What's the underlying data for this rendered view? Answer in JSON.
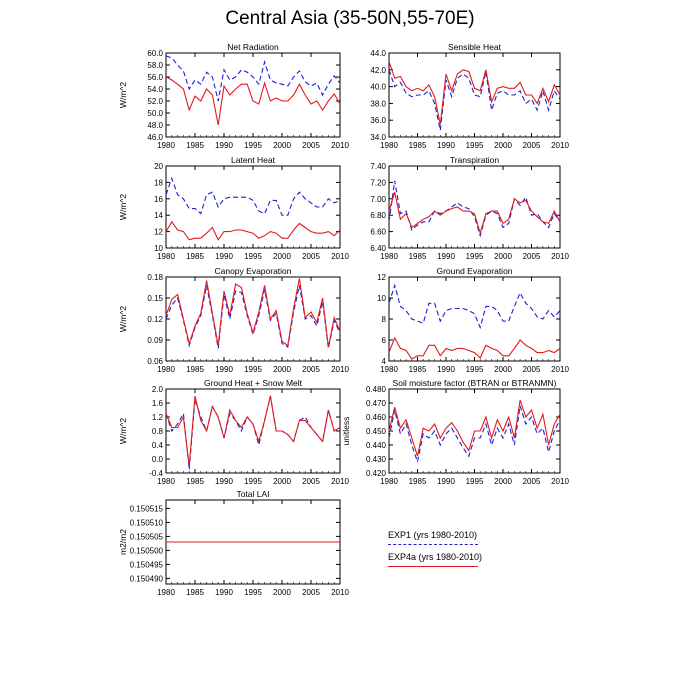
{
  "title": "Central Asia (35-50N,55-70E)",
  "legend": [
    {
      "label": "EXP1 (yrs 1980-2010)",
      "color": "#1f1fd6",
      "dash": "dashed"
    },
    {
      "label": "EXP4a (yrs 1980-2010)",
      "color": "#e31a1c",
      "dash": "solid"
    }
  ],
  "chart_data": [
    {
      "type": "line",
      "title": "Net Radiation",
      "ylabel": "W/m^2",
      "xlim": [
        1980,
        2010
      ],
      "ylim": [
        46,
        60
      ],
      "yticks": [
        "46.0",
        "48.0",
        "50.0",
        "52.0",
        "54.0",
        "56.0",
        "58.0",
        "60.0"
      ],
      "xticks": [
        "1980",
        "1985",
        "1990",
        "1995",
        "2000",
        "2005",
        "2010"
      ],
      "x": [
        1980,
        1981,
        1982,
        1983,
        1984,
        1985,
        1986,
        1987,
        1988,
        1989,
        1990,
        1991,
        1992,
        1993,
        1994,
        1995,
        1996,
        1997,
        1998,
        1999,
        2000,
        2001,
        2002,
        2003,
        2004,
        2005,
        2006,
        2007,
        2008,
        2009,
        2010
      ],
      "series": [
        {
          "name": "EXP1 (yrs 1980-2010)",
          "values": [
            59.5,
            59.2,
            58.0,
            57.0,
            54.0,
            55.5,
            54.8,
            56.8,
            56.0,
            52.0,
            57.2,
            55.5,
            56.0,
            57.2,
            56.8,
            56.0,
            54.8,
            58.5,
            55.5,
            55.0,
            54.8,
            54.5,
            56.0,
            57.0,
            55.2,
            54.5,
            55.0,
            53.0,
            54.8,
            56.2,
            55.0
          ]
        },
        {
          "name": "EXP4a (yrs 1980-2010)",
          "values": [
            56.0,
            55.5,
            54.8,
            54.0,
            50.5,
            52.8,
            52.0,
            54.0,
            53.0,
            48.0,
            54.5,
            53.0,
            54.0,
            54.8,
            54.8,
            52.0,
            51.5,
            55.0,
            52.0,
            52.5,
            52.0,
            52.0,
            53.0,
            54.8,
            53.0,
            51.5,
            52.0,
            50.5,
            52.0,
            53.2,
            51.5
          ]
        }
      ]
    },
    {
      "type": "line",
      "title": "Sensible Heat",
      "ylabel": "",
      "xlim": [
        1980,
        2010
      ],
      "ylim": [
        34,
        44
      ],
      "yticks": [
        "34.0",
        "36.0",
        "38.0",
        "40.0",
        "42.0",
        "44.0"
      ],
      "xticks": [
        "1980",
        "1985",
        "1990",
        "1995",
        "2000",
        "2005",
        "2010"
      ],
      "x": [
        1980,
        1981,
        1982,
        1983,
        1984,
        1985,
        1986,
        1987,
        1988,
        1989,
        1990,
        1991,
        1992,
        1993,
        1994,
        1995,
        1996,
        1997,
        1998,
        1999,
        2000,
        2001,
        2002,
        2003,
        2004,
        2005,
        2006,
        2007,
        2008,
        2009,
        2010
      ],
      "series": [
        {
          "name": "EXP1 (yrs 1980-2010)",
          "values": [
            42.0,
            40.0,
            40.5,
            39.2,
            38.8,
            39.0,
            39.0,
            39.5,
            38.0,
            34.8,
            40.8,
            38.8,
            41.0,
            41.5,
            41.0,
            39.0,
            38.8,
            41.8,
            37.2,
            39.2,
            39.5,
            39.0,
            39.0,
            39.5,
            38.0,
            38.5,
            37.2,
            39.5,
            37.2,
            39.5,
            38.5
          ]
        },
        {
          "name": "EXP4a (yrs 1980-2010)",
          "values": [
            43.0,
            41.0,
            41.2,
            40.0,
            39.5,
            39.8,
            39.5,
            40.2,
            38.8,
            35.5,
            41.5,
            39.5,
            41.5,
            42.0,
            41.8,
            39.8,
            39.5,
            42.0,
            38.2,
            39.8,
            40.0,
            39.8,
            39.8,
            40.5,
            39.0,
            39.0,
            38.0,
            39.8,
            38.2,
            40.2,
            39.0
          ]
        }
      ]
    },
    {
      "type": "line",
      "title": "Latent Heat",
      "ylabel": "W/m^2",
      "xlim": [
        1980,
        2010
      ],
      "ylim": [
        10,
        20
      ],
      "yticks": [
        "10",
        "12",
        "14",
        "16",
        "18",
        "20"
      ],
      "xticks": [
        "1980",
        "1985",
        "1990",
        "1995",
        "2000",
        "2005",
        "2010"
      ],
      "x": [
        1980,
        1981,
        1982,
        1983,
        1984,
        1985,
        1986,
        1987,
        1988,
        1989,
        1990,
        1991,
        1992,
        1993,
        1994,
        1995,
        1996,
        1997,
        1998,
        1999,
        2000,
        2001,
        2002,
        2003,
        2004,
        2005,
        2006,
        2007,
        2008,
        2009,
        2010
      ],
      "series": [
        {
          "name": "EXP1 (yrs 1980-2010)",
          "values": [
            16.5,
            18.5,
            16.5,
            16.0,
            14.8,
            14.8,
            14.2,
            16.5,
            16.8,
            15.0,
            16.0,
            16.2,
            16.2,
            16.2,
            16.2,
            15.8,
            14.5,
            14.2,
            15.8,
            15.8,
            14.0,
            14.0,
            16.0,
            16.8,
            16.0,
            15.5,
            15.0,
            15.0,
            16.0,
            15.5,
            15.8
          ]
        },
        {
          "name": "EXP4a (yrs 1980-2010)",
          "values": [
            12.0,
            13.2,
            12.2,
            12.0,
            11.0,
            11.2,
            11.2,
            11.8,
            12.5,
            11.0,
            12.0,
            12.0,
            12.2,
            12.2,
            12.0,
            11.8,
            11.2,
            11.5,
            12.0,
            11.8,
            11.2,
            11.2,
            12.2,
            13.0,
            12.5,
            12.0,
            11.8,
            11.8,
            12.0,
            11.5,
            12.2
          ]
        }
      ]
    },
    {
      "type": "line",
      "title": "Transpiration",
      "ylabel": "",
      "xlim": [
        1980,
        2010
      ],
      "ylim": [
        6.4,
        7.4
      ],
      "yticks": [
        "6.40",
        "6.60",
        "6.80",
        "7.00",
        "7.20",
        "7.40"
      ],
      "xticks": [
        "1980",
        "1985",
        "1990",
        "1995",
        "2000",
        "2005",
        "2010"
      ],
      "x": [
        1980,
        1981,
        1982,
        1983,
        1984,
        1985,
        1986,
        1987,
        1988,
        1989,
        1990,
        1991,
        1992,
        1993,
        1994,
        1995,
        1996,
        1997,
        1998,
        1999,
        2000,
        2001,
        2002,
        2003,
        2004,
        2005,
        2006,
        2007,
        2008,
        2009,
        2010
      ],
      "series": [
        {
          "name": "EXP1 (yrs 1980-2010)",
          "values": [
            6.72,
            7.22,
            6.82,
            6.85,
            6.62,
            6.68,
            6.72,
            6.72,
            6.85,
            6.82,
            6.85,
            6.9,
            6.95,
            6.9,
            6.88,
            6.78,
            6.55,
            6.8,
            6.85,
            6.82,
            6.65,
            6.7,
            7.0,
            6.92,
            7.02,
            6.8,
            6.82,
            6.72,
            6.65,
            6.82,
            6.72
          ]
        },
        {
          "name": "EXP4a (yrs 1980-2010)",
          "values": [
            6.85,
            7.08,
            6.75,
            6.82,
            6.65,
            6.7,
            6.75,
            6.78,
            6.85,
            6.8,
            6.85,
            6.88,
            6.9,
            6.85,
            6.85,
            6.82,
            6.58,
            6.82,
            6.85,
            6.85,
            6.7,
            6.75,
            7.0,
            6.95,
            6.98,
            6.85,
            6.78,
            6.72,
            6.7,
            6.85,
            6.72
          ]
        }
      ]
    },
    {
      "type": "line",
      "title": "Canopy Evaporation",
      "ylabel": "W/m^2",
      "xlim": [
        1980,
        2010
      ],
      "ylim": [
        0.06,
        0.18
      ],
      "yticks": [
        "0.06",
        "0.09",
        "0.12",
        "0.15",
        "0.18"
      ],
      "xticks": [
        "1980",
        "1985",
        "1990",
        "1995",
        "2000",
        "2005",
        "2010"
      ],
      "x": [
        1980,
        1981,
        1982,
        1983,
        1984,
        1985,
        1986,
        1987,
        1988,
        1989,
        1990,
        1991,
        1992,
        1993,
        1994,
        1995,
        1996,
        1997,
        1998,
        1999,
        2000,
        2001,
        2002,
        2003,
        2004,
        2005,
        2006,
        2007,
        2008,
        2009,
        2010
      ],
      "series": [
        {
          "name": "EXP1 (yrs 1980-2010)",
          "values": [
            0.12,
            0.14,
            0.15,
            0.118,
            0.082,
            0.108,
            0.125,
            0.168,
            0.125,
            0.078,
            0.155,
            0.12,
            0.16,
            0.158,
            0.125,
            0.098,
            0.125,
            0.162,
            0.118,
            0.128,
            0.085,
            0.08,
            0.13,
            0.168,
            0.12,
            0.125,
            0.11,
            0.145,
            0.078,
            0.118,
            0.1
          ]
        },
        {
          "name": "EXP4a (yrs 1980-2010)",
          "values": [
            0.125,
            0.148,
            0.155,
            0.12,
            0.085,
            0.11,
            0.128,
            0.175,
            0.128,
            0.082,
            0.16,
            0.125,
            0.17,
            0.165,
            0.128,
            0.1,
            0.13,
            0.168,
            0.12,
            0.132,
            0.088,
            0.082,
            0.135,
            0.178,
            0.122,
            0.13,
            0.115,
            0.15,
            0.08,
            0.122,
            0.102
          ]
        }
      ]
    },
    {
      "type": "line",
      "title": "Ground Evaporation",
      "ylabel": "",
      "xlim": [
        1980,
        2010
      ],
      "ylim": [
        4,
        12
      ],
      "yticks": [
        "4",
        "6",
        "8",
        "10",
        "12"
      ],
      "xticks": [
        "1980",
        "1985",
        "1990",
        "1995",
        "2000",
        "2005",
        "2010"
      ],
      "x": [
        1980,
        1981,
        1982,
        1983,
        1984,
        1985,
        1986,
        1987,
        1988,
        1989,
        1990,
        1991,
        1992,
        1993,
        1994,
        1995,
        1996,
        1997,
        1998,
        1999,
        2000,
        2001,
        2002,
        2003,
        2004,
        2005,
        2006,
        2007,
        2008,
        2009,
        2010
      ],
      "series": [
        {
          "name": "EXP1 (yrs 1980-2010)",
          "values": [
            9.5,
            11.2,
            9.2,
            8.8,
            8.0,
            7.8,
            7.6,
            9.5,
            9.5,
            7.8,
            8.8,
            9.0,
            9.0,
            9.0,
            8.8,
            8.5,
            7.2,
            9.2,
            9.2,
            8.8,
            7.8,
            7.8,
            9.2,
            10.5,
            9.5,
            9.0,
            8.2,
            8.0,
            8.8,
            8.2,
            8.8
          ]
        },
        {
          "name": "EXP4a (yrs 1980-2010)",
          "values": [
            4.8,
            6.2,
            5.2,
            5.0,
            4.2,
            4.5,
            4.5,
            5.5,
            5.5,
            4.5,
            5.2,
            5.0,
            5.2,
            5.2,
            5.0,
            4.8,
            4.3,
            5.5,
            5.2,
            5.0,
            4.5,
            4.5,
            5.2,
            6.0,
            5.5,
            5.2,
            4.8,
            4.8,
            5.0,
            4.8,
            5.2
          ]
        }
      ]
    },
    {
      "type": "line",
      "title": "Ground Heat + Snow Melt",
      "ylabel": "W/m^2",
      "xlim": [
        1980,
        2010
      ],
      "ylim": [
        -0.4,
        2.0
      ],
      "yticks": [
        "-0.4",
        "0.0",
        "0.4",
        "0.8",
        "1.2",
        "1.6",
        "2.0"
      ],
      "xticks": [
        "1980",
        "1985",
        "1990",
        "1995",
        "2000",
        "2005",
        "2010"
      ],
      "x": [
        1980,
        1981,
        1982,
        1983,
        1984,
        1985,
        1986,
        1987,
        1988,
        1989,
        1990,
        1991,
        1992,
        1993,
        1994,
        1995,
        1996,
        1997,
        1998,
        1999,
        2000,
        2001,
        2002,
        2003,
        2004,
        2005,
        2006,
        2007,
        2008,
        2009,
        2010
      ],
      "series": [
        {
          "name": "EXP1 (yrs 1980-2010)",
          "values": [
            1.3,
            0.8,
            1.0,
            1.3,
            -0.3,
            1.7,
            1.2,
            0.8,
            1.5,
            1.2,
            0.6,
            1.3,
            1.1,
            0.8,
            1.2,
            1.0,
            0.4,
            1.1,
            1.8,
            0.8,
            0.8,
            0.7,
            0.5,
            1.1,
            1.2,
            0.9,
            0.7,
            0.5,
            1.4,
            0.8,
            0.9
          ]
        },
        {
          "name": "EXP4a (yrs 1980-2010)",
          "values": [
            1.3,
            0.9,
            0.9,
            1.2,
            -0.2,
            1.8,
            1.1,
            0.8,
            1.5,
            1.2,
            0.6,
            1.4,
            1.1,
            0.9,
            1.2,
            1.0,
            0.5,
            1.1,
            1.8,
            0.8,
            0.8,
            0.7,
            0.5,
            1.1,
            1.1,
            0.9,
            0.7,
            0.5,
            1.4,
            0.8,
            0.9
          ]
        }
      ]
    },
    {
      "type": "line",
      "title": "Soil moisture factor (BTRAN or BTRANMN)",
      "ylabel": "unitless",
      "xlim": [
        1980,
        2010
      ],
      "ylim": [
        0.42,
        0.48
      ],
      "yticks": [
        "0.420",
        "0.430",
        "0.440",
        "0.450",
        "0.460",
        "0.470",
        "0.480"
      ],
      "xticks": [
        "1980",
        "1985",
        "1990",
        "1995",
        "2000",
        "2005",
        "2010"
      ],
      "x": [
        1980,
        1981,
        1982,
        1983,
        1984,
        1985,
        1986,
        1987,
        1988,
        1989,
        1990,
        1991,
        1992,
        1993,
        1994,
        1995,
        1996,
        1997,
        1998,
        1999,
        2000,
        2001,
        2002,
        2003,
        2004,
        2005,
        2006,
        2007,
        2008,
        2009,
        2010
      ],
      "series": [
        {
          "name": "EXP1 (yrs 1980-2010)",
          "values": [
            0.445,
            0.465,
            0.448,
            0.455,
            0.44,
            0.428,
            0.448,
            0.445,
            0.45,
            0.44,
            0.448,
            0.452,
            0.445,
            0.438,
            0.432,
            0.445,
            0.445,
            0.455,
            0.44,
            0.452,
            0.445,
            0.455,
            0.44,
            0.468,
            0.455,
            0.46,
            0.448,
            0.452,
            0.435,
            0.45,
            0.458
          ]
        },
        {
          "name": "EXP4a (yrs 1980-2010)",
          "values": [
            0.45,
            0.467,
            0.452,
            0.458,
            0.445,
            0.432,
            0.452,
            0.45,
            0.455,
            0.445,
            0.452,
            0.456,
            0.45,
            0.442,
            0.436,
            0.45,
            0.45,
            0.46,
            0.445,
            0.458,
            0.45,
            0.46,
            0.445,
            0.472,
            0.46,
            0.465,
            0.452,
            0.462,
            0.44,
            0.455,
            0.462
          ]
        }
      ]
    },
    {
      "type": "line",
      "title": "Total LAI",
      "ylabel": "m2/m2",
      "xlim": [
        1980,
        2010
      ],
      "ylim": [
        0.150488,
        0.150518
      ],
      "yticks": [
        "0.150490",
        "0.150495",
        "0.150500",
        "0.150505",
        "0.150510",
        "0.150515"
      ],
      "yticks_values": [
        0.15049,
        0.150495,
        0.1505,
        0.150505,
        0.15051,
        0.150515
      ],
      "xticks": [
        "1980",
        "1985",
        "1990",
        "1995",
        "2000",
        "2005",
        "2010"
      ],
      "x": [
        1980,
        2010
      ],
      "series": [
        {
          "name": "EXP1 (yrs 1980-2010)",
          "values": [
            0.150503,
            0.150503
          ]
        },
        {
          "name": "EXP4a (yrs 1980-2010)",
          "values": [
            0.150503,
            0.150503
          ]
        }
      ]
    }
  ]
}
